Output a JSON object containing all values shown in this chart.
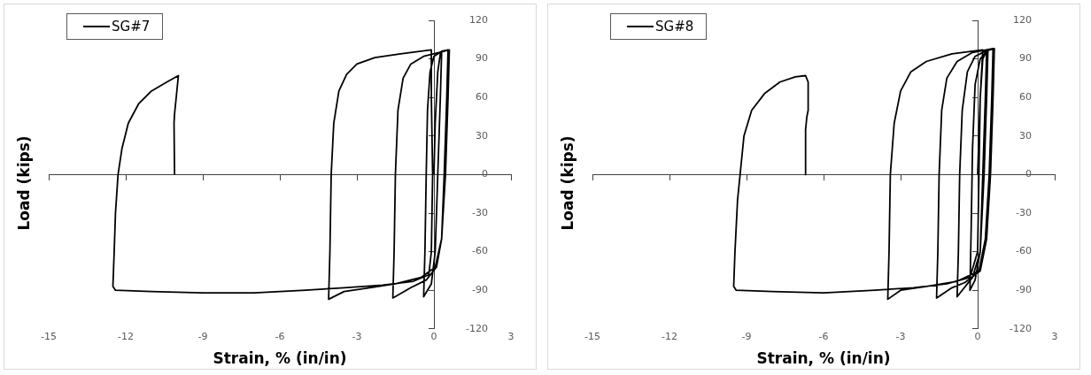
{
  "chart_data": [
    {
      "type": "line",
      "xlabel": "Strain, % (in/in)",
      "ylabel": "Load (kips)",
      "xlim": [
        -15,
        3
      ],
      "xticks": [
        -15,
        -12,
        -9,
        -6,
        -3,
        0,
        3
      ],
      "ylim": [
        -120,
        120
      ],
      "yticks": [
        -120,
        -90,
        -60,
        -30,
        0,
        30,
        60,
        90,
        120
      ],
      "legend": "top left",
      "marker": "none",
      "line_style": "solid",
      "series": [
        {
          "name": "SG#7",
          "color": "#000000",
          "x": [
            0,
            0.05,
            0.15,
            0.25,
            0.3,
            0.25,
            0.15,
            0.05,
            -0.1,
            -0.4,
            -0.35,
            -0.3,
            -0.25,
            -0.15,
            0,
            0.3,
            0.55,
            0.5,
            0.4,
            0.3,
            0.1,
            -0.3,
            -0.9,
            -1.6,
            -1.55,
            -1.5,
            -1.4,
            -1.2,
            -0.9,
            -0.4,
            0.2,
            0.6,
            0.55,
            0.45,
            0.3,
            0.05,
            -0.5,
            -1.5,
            -2.5,
            -3.5,
            -4.1,
            -4.05,
            -4,
            -3.9,
            -3.7,
            -3.4,
            -3,
            -2.3,
            -1.3,
            -0.1,
            -0.1,
            -0.05,
            -0.1,
            -0.2,
            -0.8,
            -2,
            -3.5,
            -5,
            -7,
            -9,
            -11,
            -12.4,
            -12.5,
            -12.45,
            -12.4,
            -12.3,
            -12.15,
            -11.9,
            -11.5,
            -11,
            -10.4,
            -9.95,
            -10.1,
            -10.12,
            -10.1
          ],
          "values": [
            0,
            40,
            80,
            94,
            95,
            60,
            0,
            -60,
            -85,
            -95,
            -60,
            0,
            50,
            80,
            92,
            96,
            97,
            60,
            0,
            -50,
            -72,
            -82,
            -88,
            -96,
            -60,
            0,
            50,
            75,
            86,
            92,
            95,
            97,
            60,
            0,
            -50,
            -72,
            -80,
            -85,
            -88,
            -91,
            -97,
            -60,
            0,
            40,
            65,
            78,
            86,
            91,
            94,
            97,
            60,
            0,
            -60,
            -78,
            -83,
            -86,
            -88,
            -90,
            -92,
            -92,
            -91,
            -90,
            -87,
            -60,
            -30,
            0,
            20,
            40,
            55,
            65,
            72,
            77,
            47,
            40,
            0
          ]
        }
      ]
    },
    {
      "type": "line",
      "xlabel": "Strain, % (in/in)",
      "ylabel": "Load (kips)",
      "xlim": [
        -15,
        3
      ],
      "xticks": [
        -15,
        -12,
        -9,
        -6,
        -3,
        0,
        3
      ],
      "ylim": [
        -120,
        120
      ],
      "yticks": [
        -120,
        -90,
        -60,
        -30,
        0,
        30,
        60,
        90,
        120
      ],
      "legend": "top left",
      "marker": "none",
      "line_style": "solid",
      "series": [
        {
          "name": "SG#8",
          "color": "#000000",
          "x": [
            0,
            0.1,
            0.2,
            0.35,
            0.3,
            0.2,
            0.1,
            -0.1,
            -0.3,
            -0.25,
            -0.2,
            -0.1,
            0.1,
            0.4,
            0.35,
            0.25,
            0.1,
            -0.2,
            -0.8,
            -0.75,
            -0.7,
            -0.6,
            -0.4,
            -0.1,
            0.3,
            0.65,
            0.6,
            0.5,
            0.35,
            0.1,
            -0.5,
            -1,
            -1.6,
            -1.55,
            -1.5,
            -1.4,
            -1.2,
            -0.8,
            -0.2,
            0.6,
            0.55,
            0.45,
            0.3,
            0.05,
            -0.8,
            -2,
            -3,
            -3.5,
            -3.45,
            -3.4,
            -3.25,
            -3,
            -2.6,
            -2,
            -1,
            0.2,
            0.1,
            0.05,
            0,
            -0.3,
            -1.2,
            -2.5,
            -4,
            -6,
            -8,
            -9.4,
            -9.5,
            -9.45,
            -9.35,
            -9.25,
            -9.1,
            -8.8,
            -8.3,
            -7.7,
            -7.1,
            -6.7,
            -6.6,
            -6.6,
            -6.65,
            -6.7,
            -6.7
          ],
          "values": [
            0,
            60,
            90,
            96,
            60,
            0,
            -60,
            -82,
            -90,
            -40,
            20,
            70,
            90,
            97,
            60,
            0,
            -60,
            -80,
            -95,
            -60,
            0,
            50,
            80,
            92,
            96,
            98,
            60,
            0,
            -50,
            -75,
            -84,
            -88,
            -96,
            -60,
            0,
            50,
            75,
            88,
            95,
            98,
            60,
            0,
            -50,
            -75,
            -83,
            -87,
            -90,
            -97,
            -60,
            0,
            40,
            65,
            80,
            88,
            94,
            97,
            60,
            0,
            -60,
            -80,
            -85,
            -88,
            -90,
            -92,
            -91,
            -90,
            -87,
            -60,
            -20,
            0,
            30,
            50,
            63,
            72,
            76,
            77,
            72,
            50,
            45,
            35,
            0
          ]
        }
      ]
    }
  ]
}
